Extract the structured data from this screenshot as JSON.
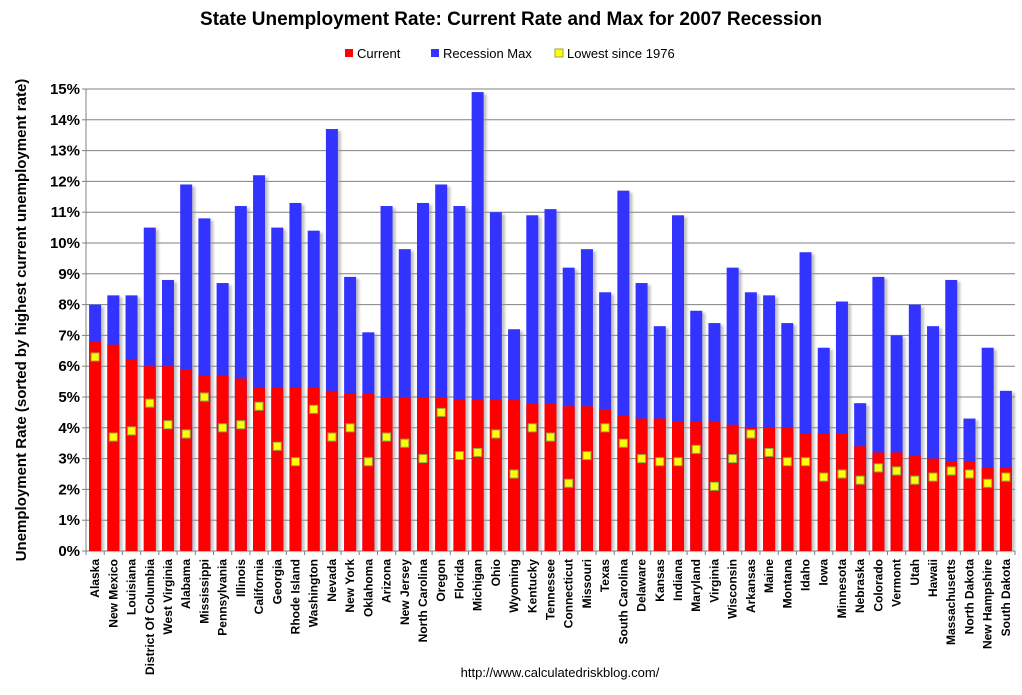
{
  "chart_data": {
    "type": "bar",
    "title": "State Unemployment Rate: Current Rate and Max for 2007 Recession",
    "ylabel": "Unemployment Rate (sorted by highest current unemployment rate)",
    "xlabel": "",
    "ylim": [
      0,
      15
    ],
    "yticks": [
      "0%",
      "1%",
      "2%",
      "3%",
      "4%",
      "5%",
      "6%",
      "7%",
      "8%",
      "9%",
      "10%",
      "11%",
      "12%",
      "13%",
      "14%",
      "15%"
    ],
    "grid": true,
    "legend_position": "top",
    "source": "http://www.calculatedriskblog.com/",
    "colors": {
      "current": "#ff0000",
      "max": "#3333ff",
      "lowest": "#ffff00",
      "lowest_border": "#8fae4a",
      "grid": "#808080"
    },
    "categories": [
      "Alaska",
      "New Mexico",
      "Louisiana",
      "District Of Columbia",
      "West Virginia",
      "Alabama",
      "Mississippi",
      "Pennsylvania",
      "Illinois",
      "California",
      "Georgia",
      "Rhode Island",
      "Washington",
      "Nevada",
      "New York",
      "Oklahoma",
      "Arizona",
      "New Jersey",
      "North Carolina",
      "Oregon",
      "Florida",
      "Michigan",
      "Ohio",
      "Wyoming",
      "Kentucky",
      "Tennessee",
      "Connecticut",
      "Missouri",
      "Texas",
      "South Carolina",
      "Delaware",
      "Kansas",
      "Indiana",
      "Maryland",
      "Virginia",
      "Wisconsin",
      "Arkansas",
      "Maine",
      "Montana",
      "Idaho",
      "Iowa",
      "Minnesota",
      "Nebraska",
      "Colorado",
      "Vermont",
      "Utah",
      "Hawaii",
      "Massachusetts",
      "North Dakota",
      "New Hampshire",
      "South Dakota"
    ],
    "series": [
      {
        "name": "Current",
        "values": [
          6.8,
          6.7,
          6.2,
          6.0,
          6.0,
          5.9,
          5.7,
          5.7,
          5.6,
          5.3,
          5.3,
          5.3,
          5.3,
          5.2,
          5.1,
          5.1,
          5.0,
          5.0,
          5.0,
          5.0,
          4.9,
          4.9,
          4.9,
          4.9,
          4.8,
          4.8,
          4.7,
          4.7,
          4.6,
          4.4,
          4.3,
          4.3,
          4.2,
          4.2,
          4.2,
          4.1,
          4.0,
          4.0,
          4.0,
          3.8,
          3.8,
          3.8,
          3.4,
          3.2,
          3.2,
          3.1,
          3.0,
          2.9,
          2.9,
          2.7,
          2.7
        ]
      },
      {
        "name": "Recession Max",
        "values": [
          8.0,
          8.3,
          8.3,
          10.5,
          8.8,
          11.9,
          10.8,
          8.7,
          11.2,
          12.2,
          10.5,
          11.3,
          10.4,
          13.7,
          8.9,
          7.1,
          11.2,
          9.8,
          11.3,
          11.9,
          11.2,
          14.9,
          11.0,
          7.2,
          10.9,
          11.1,
          9.2,
          9.8,
          8.4,
          11.7,
          8.7,
          7.3,
          10.9,
          7.8,
          7.4,
          9.2,
          8.4,
          8.3,
          7.4,
          9.7,
          6.6,
          8.1,
          4.8,
          8.9,
          7.0,
          8.0,
          7.3,
          8.8,
          4.3,
          6.6,
          5.2
        ]
      },
      {
        "name": "Lowest since 1976",
        "values": [
          6.3,
          3.7,
          3.9,
          4.8,
          4.1,
          3.8,
          5.0,
          4.0,
          4.1,
          4.7,
          3.4,
          2.9,
          4.6,
          3.7,
          4.0,
          2.9,
          3.7,
          3.5,
          3.0,
          4.5,
          3.1,
          3.2,
          3.8,
          2.5,
          4.0,
          3.7,
          2.2,
          3.1,
          4.0,
          3.5,
          3.0,
          2.9,
          2.9,
          3.3,
          2.1,
          3.0,
          3.8,
          3.2,
          2.9,
          2.9,
          2.4,
          2.5,
          2.3,
          2.7,
          2.6,
          2.3,
          2.4,
          2.6,
          2.5,
          2.2,
          2.4
        ]
      }
    ]
  }
}
